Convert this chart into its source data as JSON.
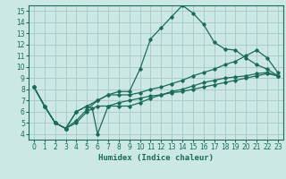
{
  "xlabel": "Humidex (Indice chaleur)",
  "bg_color": "#cce8e4",
  "grid_color": "#aaccca",
  "line_color": "#1a6b5a",
  "xlim": [
    -0.5,
    23.5
  ],
  "ylim": [
    3.5,
    15.5
  ],
  "xticks": [
    0,
    1,
    2,
    3,
    4,
    5,
    6,
    7,
    8,
    9,
    10,
    11,
    12,
    13,
    14,
    15,
    16,
    17,
    18,
    19,
    20,
    21,
    22,
    23
  ],
  "yticks": [
    4,
    5,
    6,
    7,
    8,
    9,
    10,
    11,
    12,
    13,
    14,
    15
  ],
  "lines": [
    {
      "x": [
        0,
        1,
        2,
        3,
        4,
        5,
        6,
        7,
        8,
        9,
        10,
        11,
        12,
        13,
        14,
        15,
        16,
        17,
        18,
        19,
        20,
        21,
        22,
        23
      ],
      "y": [
        8.2,
        6.5,
        5.0,
        4.5,
        6.0,
        6.5,
        7.0,
        7.5,
        7.8,
        7.8,
        9.8,
        12.5,
        13.5,
        14.5,
        15.5,
        14.8,
        13.8,
        12.2,
        11.6,
        11.5,
        10.8,
        10.2,
        9.8,
        9.2
      ]
    },
    {
      "x": [
        0,
        1,
        2,
        3,
        4,
        5,
        5.5,
        6,
        7,
        8,
        9,
        10,
        11,
        12,
        13,
        14,
        15,
        16,
        17,
        18,
        19,
        20,
        21,
        22,
        23
      ],
      "y": [
        8.2,
        6.5,
        5.0,
        4.5,
        6.0,
        6.5,
        6.3,
        4.0,
        6.5,
        6.5,
        6.5,
        6.8,
        7.2,
        7.5,
        7.8,
        8.0,
        8.3,
        8.6,
        8.8,
        9.0,
        9.1,
        9.2,
        9.4,
        9.5,
        9.2
      ]
    },
    {
      "x": [
        0,
        1,
        2,
        3,
        4,
        5,
        6,
        7,
        8,
        9,
        10,
        11,
        12,
        13,
        14,
        15,
        16,
        17,
        18,
        19,
        20,
        21,
        22,
        23
      ],
      "y": [
        8.2,
        6.5,
        5.0,
        4.5,
        5.0,
        6.0,
        6.5,
        6.5,
        6.8,
        7.0,
        7.2,
        7.4,
        7.5,
        7.7,
        7.8,
        8.0,
        8.2,
        8.4,
        8.6,
        8.8,
        9.0,
        9.2,
        9.4,
        9.2
      ]
    },
    {
      "x": [
        0,
        1,
        2,
        3,
        4,
        5,
        6,
        7,
        8,
        9,
        10,
        11,
        12,
        13,
        14,
        15,
        16,
        17,
        18,
        19,
        20,
        21,
        22,
        23
      ],
      "y": [
        8.2,
        6.5,
        5.0,
        4.5,
        5.2,
        6.2,
        7.0,
        7.5,
        7.5,
        7.5,
        7.7,
        8.0,
        8.2,
        8.5,
        8.8,
        9.2,
        9.5,
        9.8,
        10.2,
        10.5,
        11.0,
        11.5,
        10.8,
        9.5
      ]
    }
  ]
}
